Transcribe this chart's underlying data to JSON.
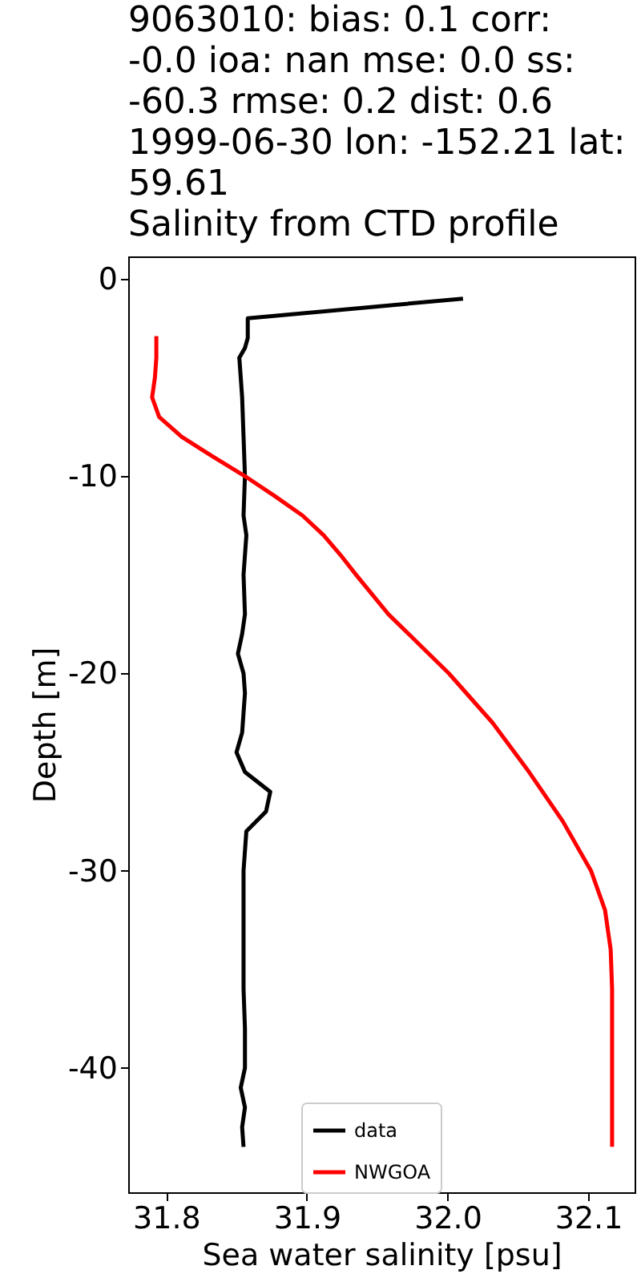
{
  "chart_data": {
    "type": "line",
    "title": "9063010: bias: 0.1  corr:\n-0.0  ioa: nan  mse: 0.0  ss:\n-60.3  rmse: 0.2  dist: 0.6\n1999-06-30 lon: -152.21 lat:\n59.61\nSalinity from CTD profile",
    "xlabel": "Sea water salinity [psu]",
    "ylabel": "Depth [m]",
    "xlim": [
      31.773,
      32.133
    ],
    "xticks": [
      31.8,
      31.9,
      {
        "value": 32.0,
        "label": "32.0"
      },
      32.1
    ],
    "ylim": [
      -46.3,
      1.14
    ],
    "yticks": [
      0,
      -10,
      -20,
      -30,
      -40
    ],
    "grid": false,
    "legend": "bottom",
    "line_style": "solid",
    "marker": "none",
    "series": [
      {
        "name": "data",
        "color": "#000000",
        "x": [
          32.011,
          31.858,
          31.858,
          31.856,
          31.852,
          31.854,
          31.855,
          31.856,
          31.855,
          31.857,
          31.855,
          31.856,
          31.854,
          31.851,
          31.855,
          31.856,
          31.855,
          31.854,
          31.85,
          31.856,
          31.874,
          31.871,
          31.857,
          31.855,
          31.855,
          31.855,
          31.856,
          31.856,
          31.853,
          31.856,
          31.854,
          31.855
        ],
        "values": [
          -1,
          -2,
          -3,
          -3.5,
          -4,
          -6,
          -8,
          -10,
          -12,
          -13,
          -15,
          -17,
          -18,
          -19,
          -20,
          -21,
          -22,
          -23,
          -24,
          -25,
          -26,
          -27,
          -28,
          -30,
          -33,
          -36,
          -38,
          -40,
          -41,
          -42,
          -43,
          -44
        ]
      },
      {
        "name": "NWGOA",
        "color": "#ff0000",
        "x": [
          31.793,
          31.793,
          31.792,
          31.79,
          31.795,
          31.811,
          31.833,
          31.856,
          31.877,
          31.897,
          31.912,
          31.924,
          31.935,
          31.958,
          32.001,
          32.032,
          32.058,
          32.082,
          32.102,
          32.112,
          32.116,
          32.117,
          32.117
        ],
        "values": [
          -2.9,
          -4,
          -5,
          -6,
          -7,
          -8,
          -9,
          -10,
          -11,
          -12,
          -13,
          -14,
          -15,
          -17,
          -20,
          -22.5,
          -25,
          -27.5,
          -30,
          -32,
          -34,
          -36,
          -44
        ]
      }
    ]
  }
}
